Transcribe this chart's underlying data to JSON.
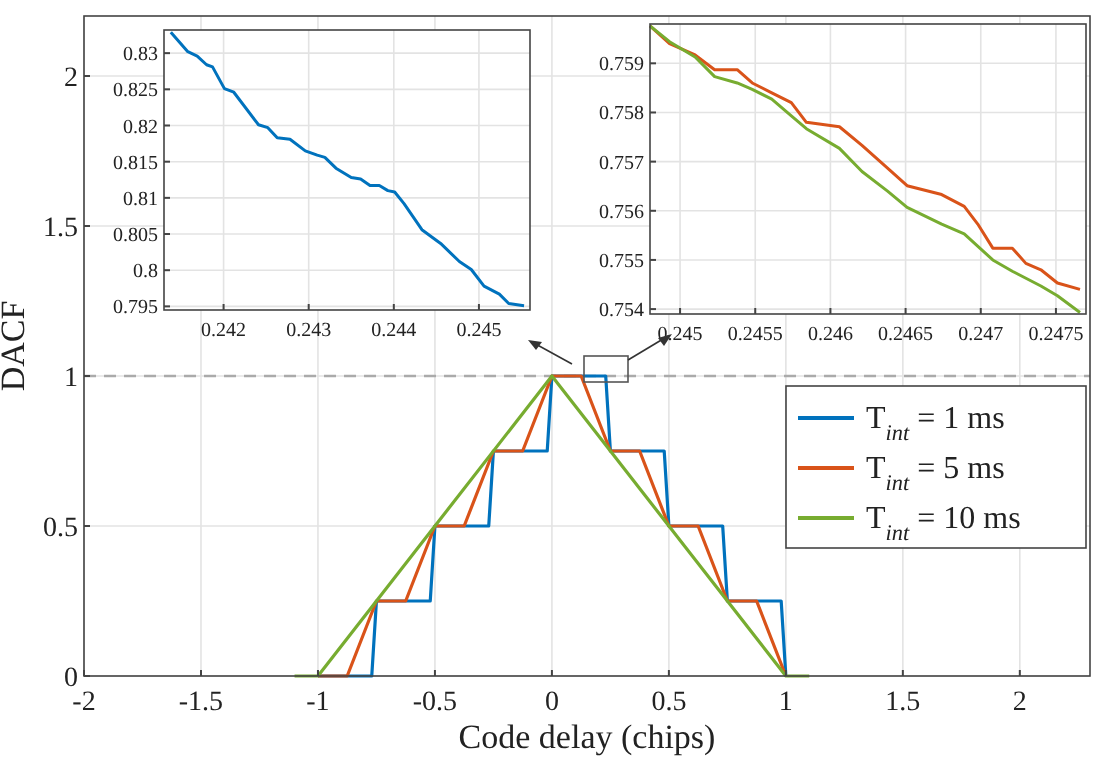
{
  "chart_data": [
    {
      "type": "line",
      "xlabel": "Code delay (chips)",
      "ylabel": "DACF",
      "xlim": [
        -2,
        2.3
      ],
      "xticks": [
        -2,
        -1.5,
        -1,
        -0.5,
        0,
        0.5,
        1,
        1.5,
        2
      ],
      "ylim": [
        0,
        2.2
      ],
      "yticks": [
        0,
        0.5,
        1,
        1.5,
        2
      ],
      "grid": true,
      "legend": "right",
      "ref_lines": [
        {
          "axis": "y",
          "value": 1,
          "color": "#aaaaaa",
          "line_style": "dashed"
        }
      ],
      "series": [
        {
          "name": "T$_{int}$ = 1 ms",
          "color": "#0072bd",
          "x": [
            -1,
            -0.77,
            -0.75,
            -0.52,
            -0.5,
            -0.27,
            -0.25,
            -0.02,
            0,
            0.23,
            0.25,
            0.48,
            0.5,
            0.73,
            0.75,
            0.98,
            1
          ],
          "values": [
            0,
            0,
            0.25,
            0.25,
            0.5,
            0.5,
            0.75,
            0.75,
            1,
            1,
            0.75,
            0.75,
            0.5,
            0.5,
            0.25,
            0.25,
            0
          ]
        },
        {
          "name": "T$_{int}$ = 5 ms",
          "color": "#d95319",
          "x": [
            -1,
            -0.875,
            -0.75,
            -0.625,
            -0.5,
            -0.375,
            -0.25,
            -0.125,
            0,
            0.125,
            0.25,
            0.375,
            0.5,
            0.625,
            0.75,
            0.875,
            1
          ],
          "values": [
            0,
            0,
            0.25,
            0.25,
            0.5,
            0.5,
            0.75,
            0.75,
            1,
            1,
            0.75,
            0.75,
            0.5,
            0.5,
            0.25,
            0.25,
            0
          ]
        },
        {
          "name": "T$_{int}$ = 10 ms",
          "color": "#77ac30",
          "x": [
            -1.1,
            -1,
            0,
            1,
            1.1
          ],
          "values": [
            0,
            0,
            1,
            0,
            0
          ]
        }
      ]
    },
    {
      "type": "line",
      "xlim": [
        0.2413,
        0.2456
      ],
      "xticks": [
        0.242,
        0.243,
        0.244,
        0.245
      ],
      "ylim": [
        0.7945,
        0.8332
      ],
      "yticks": [
        0.795,
        0.8,
        0.805,
        0.81,
        0.815,
        0.82,
        0.825,
        0.83
      ],
      "grid": true,
      "series": [
        {
          "color": "#0072bd",
          "x": [
            0.24138,
            0.24158,
            0.24169,
            0.2418,
            0.24187,
            0.24201,
            0.24212,
            0.24241,
            0.24252,
            0.24263,
            0.24278,
            0.24296,
            0.2431,
            0.24319,
            0.24332,
            0.2435,
            0.24361,
            0.24372,
            0.24383,
            0.24393,
            0.24401,
            0.24412,
            0.24433,
            0.24455,
            0.24477,
            0.24491,
            0.24506,
            0.24524,
            0.24535,
            0.24553
          ],
          "values": [
            0.8329,
            0.8302,
            0.8296,
            0.8284,
            0.8281,
            0.8251,
            0.8246,
            0.8201,
            0.8197,
            0.8183,
            0.8181,
            0.8165,
            0.8159,
            0.8156,
            0.8141,
            0.8128,
            0.8126,
            0.8117,
            0.8117,
            0.811,
            0.8108,
            0.8092,
            0.8056,
            0.8037,
            0.8012,
            0.8001,
            0.7978,
            0.7967,
            0.7954,
            0.7951
          ]
        }
      ]
    },
    {
      "type": "line",
      "xlim": [
        0.2448,
        0.2477
      ],
      "xticks": [
        0.245,
        0.2455,
        0.246,
        0.2465,
        0.247,
        0.2475
      ],
      "ylim": [
        0.7539,
        0.7598
      ],
      "yticks": [
        0.754,
        0.755,
        0.756,
        0.757,
        0.758,
        0.759
      ],
      "grid": true,
      "series": [
        {
          "color": "#d95319",
          "x": [
            0.2448,
            0.24493,
            0.2451,
            0.24523,
            0.24538,
            0.24548,
            0.24561,
            0.24574,
            0.24584,
            0.24606,
            0.24621,
            0.24638,
            0.24651,
            0.24674,
            0.24689,
            0.24698,
            0.24708,
            0.24721,
            0.2473,
            0.2474,
            0.24751,
            0.24766
          ],
          "values": [
            0.75976,
            0.7594,
            0.75917,
            0.75887,
            0.75887,
            0.7586,
            0.7584,
            0.7582,
            0.7578,
            0.75771,
            0.75733,
            0.75687,
            0.75651,
            0.75633,
            0.75609,
            0.75573,
            0.75524,
            0.75524,
            0.75493,
            0.7548,
            0.75453,
            0.7544
          ]
        },
        {
          "color": "#77ac30",
          "x": [
            0.2448,
            0.24493,
            0.2451,
            0.24523,
            0.24538,
            0.24548,
            0.24561,
            0.24574,
            0.24584,
            0.24606,
            0.24621,
            0.24638,
            0.24651,
            0.24674,
            0.24689,
            0.24708,
            0.24721,
            0.2474,
            0.24751,
            0.24766
          ],
          "values": [
            0.75976,
            0.75944,
            0.75913,
            0.75873,
            0.7586,
            0.75847,
            0.75827,
            0.75793,
            0.75767,
            0.75727,
            0.7568,
            0.7564,
            0.75607,
            0.75573,
            0.75553,
            0.755,
            0.75477,
            0.75447,
            0.75427,
            0.75393
          ]
        }
      ]
    }
  ]
}
